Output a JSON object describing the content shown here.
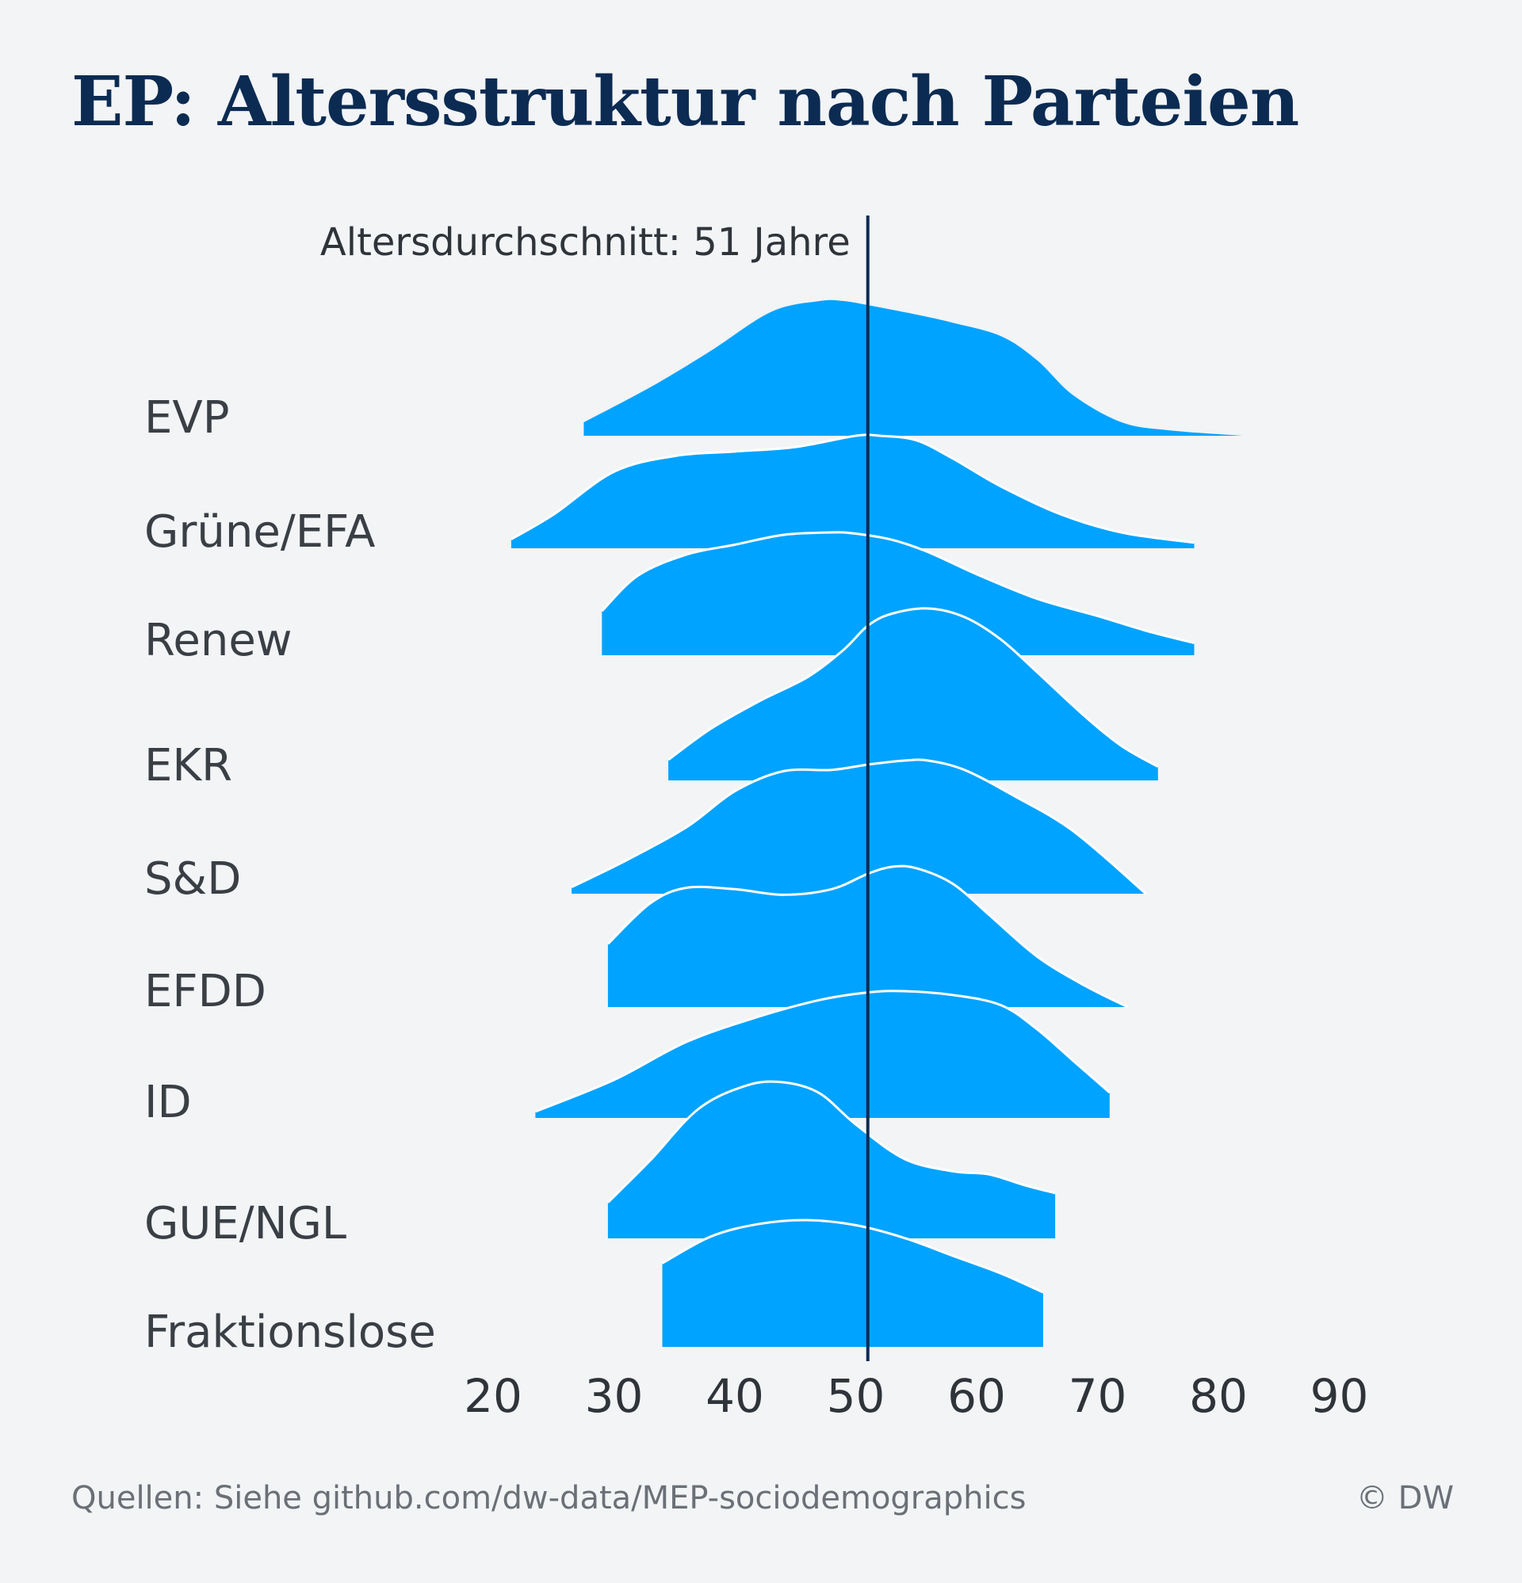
{
  "title": "EP: Altersstruktur nach Parteien",
  "source": "Quellen: Siehe github.com/dw-data/MEP-sociodemographics",
  "credit": "© DW",
  "colors": {
    "fill": "#00a3ff",
    "outline": "#ffffff",
    "mean_line": "#0c2b52",
    "background": "#f2f4f6"
  },
  "chart_data": {
    "type": "area",
    "title": "EP: Altersstruktur nach Parteien",
    "xlabel": "",
    "ylabel": "",
    "xlim": [
      20,
      90
    ],
    "xticks": [
      20,
      30,
      40,
      50,
      60,
      70,
      80,
      90
    ],
    "grid": false,
    "legend": "none",
    "mean": {
      "label": "Altersdurchschnitt: 51 Jahre",
      "value": 51
    },
    "series": [
      {
        "name": "EVP",
        "range": [
          27.5,
          82
        ],
        "x": [
          27.5,
          33,
          38,
          43,
          47,
          49,
          51,
          55,
          58,
          62,
          65,
          68,
          72,
          76,
          82
        ],
        "y": [
          0.1,
          0.36,
          0.63,
          0.92,
          1.0,
          1.0,
          0.97,
          0.9,
          0.84,
          0.74,
          0.56,
          0.3,
          0.1,
          0.04,
          0
        ]
      },
      {
        "name": "Grüne/EFA",
        "range": [
          21.5,
          78
        ],
        "x": [
          21.5,
          25,
          30,
          35,
          40,
          45,
          50,
          52,
          55,
          58,
          62,
          67,
          72,
          78
        ],
        "y": [
          0.08,
          0.3,
          0.68,
          0.82,
          0.86,
          0.9,
          1.0,
          1.0,
          0.96,
          0.8,
          0.55,
          0.3,
          0.14,
          0.05
        ]
      },
      {
        "name": "Renew",
        "range": [
          29,
          78
        ],
        "x": [
          29,
          32,
          36,
          40,
          44,
          48,
          50,
          53,
          56,
          60,
          65,
          70,
          74,
          78
        ],
        "y": [
          0.36,
          0.65,
          0.82,
          0.9,
          0.98,
          1.0,
          0.99,
          0.94,
          0.84,
          0.66,
          0.46,
          0.32,
          0.2,
          0.1
        ]
      },
      {
        "name": "EKR",
        "range": [
          34.5,
          75
        ],
        "x": [
          34.5,
          38,
          42,
          46,
          49,
          51,
          53,
          56,
          59,
          62,
          65,
          69,
          72,
          75
        ],
        "y": [
          0.12,
          0.3,
          0.46,
          0.6,
          0.76,
          0.9,
          0.97,
          1.0,
          0.95,
          0.82,
          0.63,
          0.37,
          0.2,
          0.08
        ]
      },
      {
        "name": "S&D",
        "range": [
          26.5,
          74
        ],
        "x": [
          26.5,
          31,
          36,
          40,
          44,
          48,
          51,
          54,
          56,
          59,
          63,
          68,
          74
        ],
        "y": [
          0.05,
          0.25,
          0.5,
          0.77,
          0.92,
          0.93,
          0.97,
          1.0,
          1.0,
          0.93,
          0.74,
          0.47,
          0
        ]
      },
      {
        "name": "EFDD",
        "range": [
          29.5,
          72.5
        ],
        "x": [
          29.5,
          33,
          36,
          40,
          44,
          48,
          51,
          53,
          55,
          58,
          61,
          65,
          69,
          72.5
        ],
        "y": [
          0.45,
          0.74,
          0.85,
          0.84,
          0.8,
          0.84,
          0.95,
          1.0,
          0.99,
          0.88,
          0.66,
          0.36,
          0.15,
          0
        ]
      },
      {
        "name": "ID",
        "range": [
          23.5,
          71
        ],
        "x": [
          23.5,
          30,
          36,
          42,
          47,
          51,
          54,
          58,
          62,
          65,
          68,
          71
        ],
        "y": [
          0.05,
          0.3,
          0.6,
          0.8,
          0.93,
          0.99,
          1.0,
          0.97,
          0.89,
          0.7,
          0.45,
          0.2
        ]
      },
      {
        "name": "GUE/NGL",
        "range": [
          29.5,
          66.5
        ],
        "x": [
          29.5,
          33,
          37,
          41,
          44,
          47,
          50,
          54,
          58,
          61,
          64,
          66.5
        ],
        "y": [
          0.23,
          0.5,
          0.83,
          0.98,
          1.0,
          0.93,
          0.73,
          0.51,
          0.43,
          0.41,
          0.34,
          0.29
        ]
      },
      {
        "name": "Fraktionslose",
        "range": [
          34,
          65.5
        ],
        "x": [
          34,
          38,
          42,
          46,
          50,
          54,
          58,
          62,
          65.5
        ],
        "y": [
          0.66,
          0.87,
          0.97,
          1.0,
          0.96,
          0.86,
          0.72,
          0.58,
          0.43
        ]
      }
    ]
  }
}
